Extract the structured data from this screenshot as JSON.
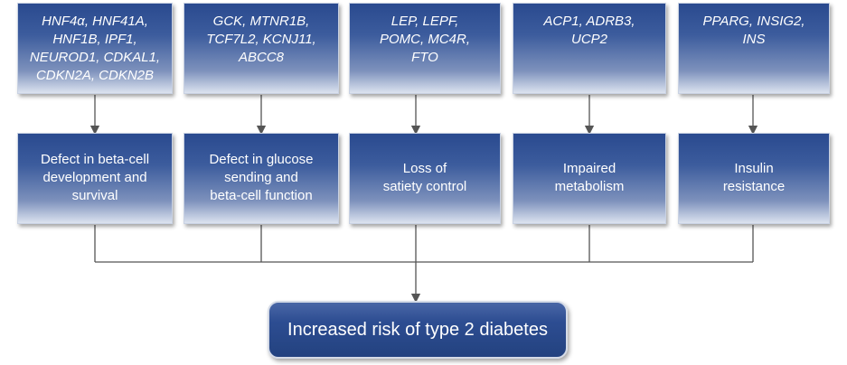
{
  "genes": [
    {
      "text": "HNF4α, HNF41A,\nHNF1B, IPF1,\nNEUROD1, CDKAL1,\nCDKN2A, CDKN2B"
    },
    {
      "text": "GCK, MTNR1B,\nTCF7L2, KCNJ11,\nABCC8"
    },
    {
      "text": "LEP, LEPF,\nPOMC, MC4R,\nFTO"
    },
    {
      "text": "ACP1, ADRB3,\nUCP2"
    },
    {
      "text": "PPARG, INSIG2,\nINS"
    }
  ],
  "effects": [
    {
      "text": "Defect in beta-cell\ndevelopment and\nsurvival"
    },
    {
      "text": "Defect in glucose\nsending and\nbeta-cell function"
    },
    {
      "text": "Loss of\nsatiety control"
    },
    {
      "text": "Impaired\nmetabolism"
    },
    {
      "text": "Insulin\nresistance"
    }
  ],
  "outcome": {
    "text": "Increased risk of type 2 diabetes"
  },
  "colors": {
    "box_top": "#2a4a8f",
    "box_bottom": "#dce3ef",
    "connector": "#555555"
  }
}
